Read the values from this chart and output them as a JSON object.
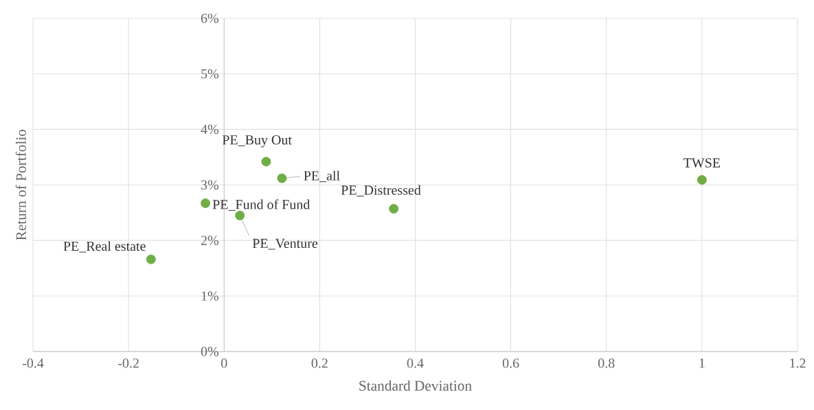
{
  "chart_data": {
    "type": "scatter",
    "xlabel": "Standard Deviation",
    "ylabel": "Return of Portfolio",
    "x": [
      -0.153,
      -0.039,
      0.033,
      0.088,
      0.121,
      0.355,
      1.0
    ],
    "series": [
      {
        "color": "#70ad47",
        "values": [
          1.66,
          2.67,
          2.45,
          3.42,
          3.12,
          2.57,
          3.09
        ]
      }
    ],
    "marker": "circle",
    "grid": true,
    "xlim": [
      -0.4,
      1.2
    ],
    "xticks": [
      {
        "value": -0.4,
        "label": "-0.4"
      },
      {
        "value": -0.2,
        "label": "-0.2"
      },
      0,
      {
        "value": 0.2,
        "label": "0.2"
      },
      {
        "value": 0.4,
        "label": "0.4"
      },
      {
        "value": 0.6,
        "label": "0.6"
      },
      {
        "value": 0.8,
        "label": "0.8"
      },
      1,
      {
        "value": 1.2,
        "label": "1.2"
      }
    ],
    "ylim": [
      0,
      6
    ],
    "yticks": [
      {
        "value": 0,
        "label": "0%"
      },
      {
        "value": 1,
        "label": "1%"
      },
      {
        "value": 2,
        "label": "2%"
      },
      {
        "value": 3,
        "label": "3%"
      },
      {
        "value": 4,
        "label": "4%"
      },
      {
        "value": 5,
        "label": "5%"
      },
      {
        "value": 6,
        "label": "6%"
      }
    ],
    "annotations": [
      {
        "text": "PE_Real estate",
        "x": -0.153,
        "y": 1.66
      },
      {
        "text": "PE_Fund of Fund",
        "x": -0.039,
        "y": 2.67
      },
      {
        "text": "PE_Venture",
        "x": 0.033,
        "y": 2.45
      },
      {
        "text": "PE_Buy Out",
        "x": 0.088,
        "y": 3.42
      },
      {
        "text": "PE_all",
        "x": 0.121,
        "y": 3.12
      },
      {
        "text": "PE_Distressed",
        "x": 0.355,
        "y": 2.57
      },
      {
        "text": "TWSE",
        "x": 1.0,
        "y": 3.09
      }
    ]
  }
}
